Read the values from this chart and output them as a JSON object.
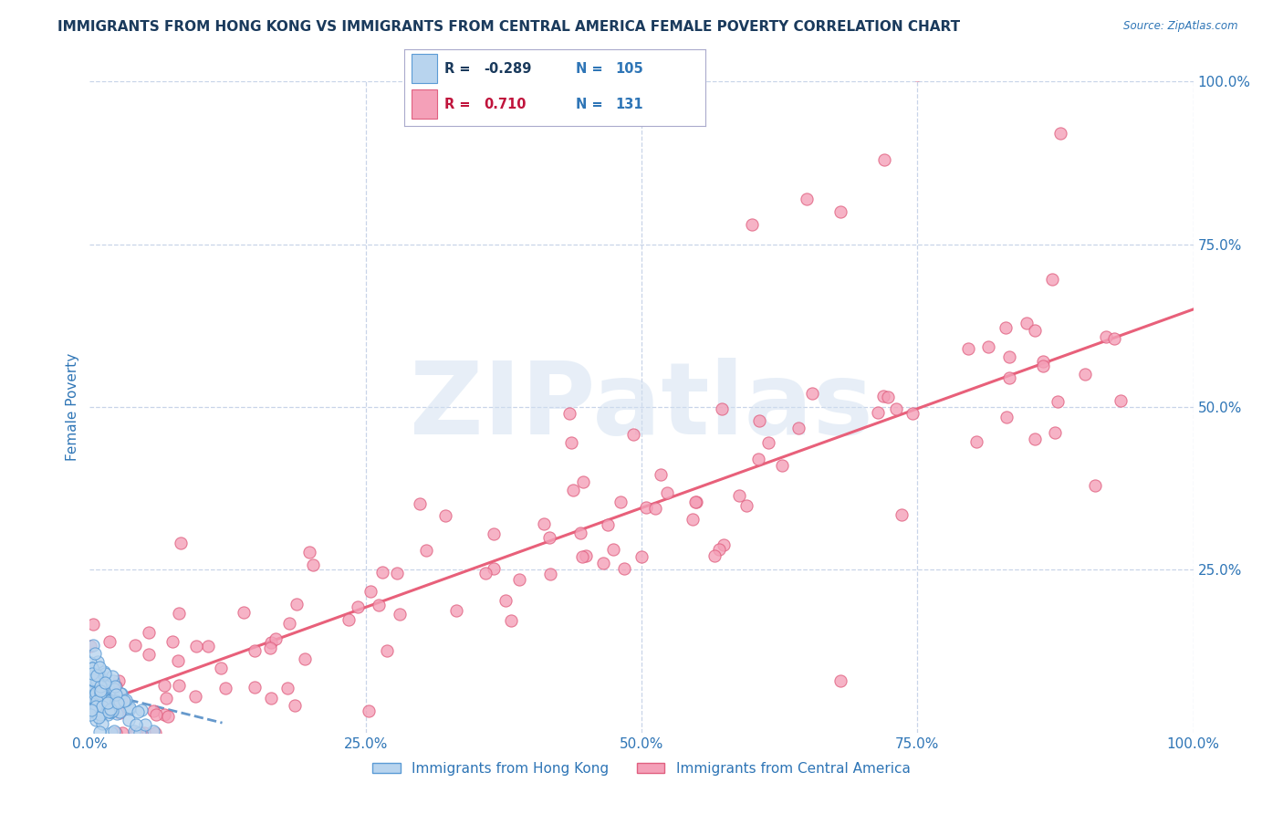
{
  "title": "IMMIGRANTS FROM HONG KONG VS IMMIGRANTS FROM CENTRAL AMERICA FEMALE POVERTY CORRELATION CHART",
  "source": "Source: ZipAtlas.com",
  "ylabel": "Female Poverty",
  "xlim": [
    0,
    1.0
  ],
  "ylim": [
    0,
    1.0
  ],
  "xtick_labels": [
    "0.0%",
    "25.0%",
    "50.0%",
    "75.0%",
    "100.0%"
  ],
  "xtick_vals": [
    0.0,
    0.25,
    0.5,
    0.75,
    1.0
  ],
  "ytick_labels": [
    "25.0%",
    "50.0%",
    "75.0%",
    "100.0%"
  ],
  "ytick_vals": [
    0.25,
    0.5,
    0.75,
    1.0
  ],
  "hk_R": -0.289,
  "hk_N": 105,
  "ca_R": 0.71,
  "ca_N": 131,
  "hk_color": "#b8d4ee",
  "hk_edge_color": "#5b9bd5",
  "ca_color": "#f4a0b8",
  "ca_edge_color": "#e06080",
  "hk_line_color": "#6699cc",
  "ca_line_color": "#e8607a",
  "watermark_color": "#d0dff0",
  "title_color": "#1a3a5c",
  "tick_label_color": "#2e75b6",
  "legend_r_color_hk": "#1a3a5c",
  "legend_r_color_ca": "#c0143c",
  "legend_n_color": "#2e75b6",
  "grid_color": "#c8d4e8",
  "background_color": "#ffffff",
  "hk_label": "Immigrants from Hong Kong",
  "ca_label": "Immigrants from Central America",
  "ca_trend_x0": 0.0,
  "ca_trend_y0": 0.04,
  "ca_trend_x1": 1.0,
  "ca_trend_y1": 0.65,
  "hk_trend_x0": 0.0,
  "hk_trend_y0": 0.065,
  "hk_trend_x1": 0.12,
  "hk_trend_y1": 0.015
}
